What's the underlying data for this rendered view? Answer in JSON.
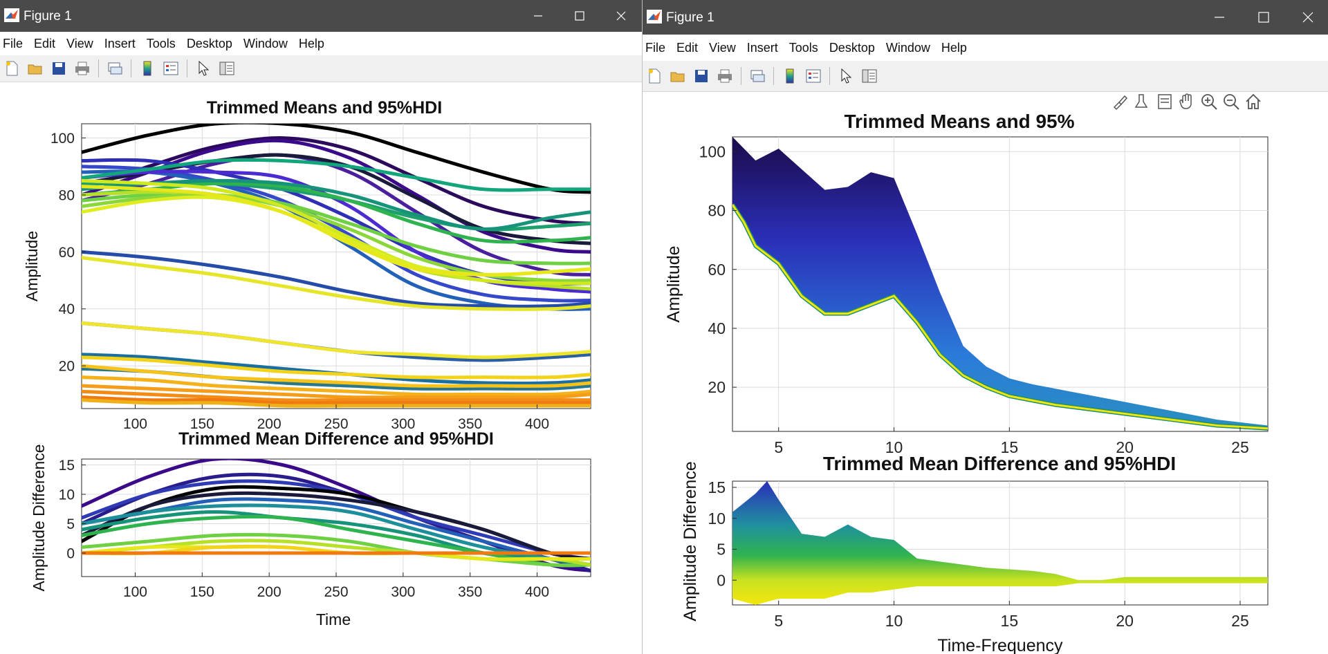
{
  "windows": [
    {
      "title": "Figure 1",
      "menus": [
        "File",
        "Edit",
        "View",
        "Insert",
        "Tools",
        "Desktop",
        "Window",
        "Help"
      ],
      "plots": {
        "top": {
          "title": "Trimmed Means and 95%HDI",
          "ylabel": "Amplitude",
          "xlabel": "",
          "xticks": [
            "100",
            "150",
            "200",
            "250",
            "300",
            "350",
            "400"
          ],
          "yticks": [
            "20",
            "40",
            "60",
            "80",
            "100"
          ]
        },
        "bottom": {
          "title": "Trimmed Mean Difference and 95%HDI",
          "ylabel": "Amplitude Difference",
          "xlabel": "Time",
          "xticks": [
            "100",
            "150",
            "200",
            "250",
            "300",
            "350",
            "400"
          ],
          "yticks": [
            "0",
            "5",
            "10",
            "15"
          ]
        }
      }
    },
    {
      "title": "Figure 1",
      "menus": [
        "File",
        "Edit",
        "View",
        "Insert",
        "Tools",
        "Desktop",
        "Window",
        "Help"
      ],
      "plots": {
        "top": {
          "title": "Trimmed Means and 95%",
          "ylabel": "Amplitude",
          "xlabel": "",
          "xticks": [
            "5",
            "10",
            "15",
            "20",
            "25"
          ],
          "yticks": [
            "20",
            "40",
            "60",
            "80",
            "100"
          ]
        },
        "bottom": {
          "title": "Trimmed Mean Difference and 95%HDI",
          "ylabel": "Amplitude Difference",
          "xlabel": "Time-Frequency",
          "xticks": [
            "5",
            "10",
            "15",
            "20",
            "25"
          ],
          "yticks": [
            "0",
            "5",
            "10",
            "15"
          ]
        }
      }
    }
  ],
  "chart_data": [
    {
      "type": "line",
      "title": "Trimmed Means and 95%HDI",
      "xlabel": "",
      "ylabel": "Amplitude",
      "xlim": [
        60,
        440
      ],
      "ylim": [
        5,
        105
      ],
      "x": [
        60,
        110,
        160,
        210,
        260,
        310,
        360,
        410,
        440
      ],
      "series": [
        {
          "color": "#000000",
          "values": [
            95,
            101,
            105,
            105,
            102,
            95,
            88,
            82,
            81
          ]
        },
        {
          "color": "#2b0a5e",
          "values": [
            82,
            90,
            97,
            100,
            96,
            86,
            76,
            71,
            70
          ]
        },
        {
          "color": "#3a0a8a",
          "values": [
            80,
            88,
            96,
            99,
            93,
            80,
            67,
            61,
            60
          ]
        },
        {
          "color": "#4a1f9e",
          "values": [
            78,
            84,
            91,
            94,
            88,
            74,
            60,
            53,
            52
          ]
        },
        {
          "color": "#1a1a3a",
          "values": [
            84,
            88,
            92,
            94,
            90,
            79,
            68,
            64,
            63
          ]
        },
        {
          "color": "#2e2fb5",
          "values": [
            92,
            92,
            88,
            82,
            72,
            60,
            52,
            49,
            49
          ]
        },
        {
          "color": "#3548c9",
          "values": [
            90,
            89,
            85,
            78,
            66,
            52,
            45,
            43,
            43
          ]
        },
        {
          "color": "#2360b8",
          "values": [
            88,
            88,
            84,
            76,
            62,
            48,
            42,
            40,
            40
          ]
        },
        {
          "color": "#4c2bd0",
          "values": [
            86,
            88,
            88,
            86,
            76,
            60,
            50,
            47,
            46
          ]
        },
        {
          "color": "#13a67c",
          "values": [
            86,
            89,
            92,
            92,
            90,
            86,
            82,
            82,
            82
          ]
        },
        {
          "color": "#1d9f6e",
          "values": [
            84,
            84,
            84,
            82,
            78,
            72,
            68,
            69,
            70
          ]
        },
        {
          "color": "#2fb34f",
          "values": [
            80,
            82,
            84,
            83,
            78,
            70,
            64,
            64,
            65
          ]
        },
        {
          "color": "#17937a",
          "values": [
            82,
            84,
            85,
            84,
            80,
            73,
            68,
            72,
            74
          ]
        },
        {
          "color": "#70d044",
          "values": [
            78,
            80,
            80,
            77,
            70,
            62,
            57,
            56,
            56
          ]
        },
        {
          "color": "#8bd63a",
          "values": [
            76,
            79,
            80,
            76,
            68,
            58,
            52,
            50,
            50
          ]
        },
        {
          "color": "#b8e028",
          "values": [
            80,
            81,
            80,
            74,
            64,
            54,
            50,
            48,
            47
          ]
        },
        {
          "color": "#cfe820",
          "values": [
            85,
            84,
            82,
            76,
            65,
            55,
            50,
            49,
            49
          ]
        },
        {
          "color": "#dded20",
          "values": [
            74,
            78,
            79,
            74,
            64,
            55,
            52,
            53,
            54
          ]
        },
        {
          "color": "#e7e81c",
          "values": [
            83,
            82,
            80,
            74,
            63,
            54,
            52,
            53,
            54
          ]
        },
        {
          "color": "#244ca8",
          "values": [
            60,
            58,
            55,
            51,
            46,
            42,
            41,
            41,
            42
          ]
        },
        {
          "color": "#e5e52a",
          "values": [
            58,
            55,
            52,
            48,
            44,
            41,
            40,
            40,
            41
          ]
        },
        {
          "color": "#2a5fa5",
          "values": [
            35,
            33,
            31,
            28,
            25,
            23,
            22,
            23,
            24
          ]
        },
        {
          "color": "#f0e52e",
          "values": [
            35,
            33,
            31,
            28,
            25,
            24,
            23,
            24,
            25
          ]
        },
        {
          "color": "#1a6ea0",
          "values": [
            24,
            23,
            21,
            19,
            17,
            15,
            14,
            14,
            15
          ]
        },
        {
          "color": "#f3d21a",
          "values": [
            23,
            22,
            20,
            18,
            17,
            16,
            16,
            16,
            17
          ]
        },
        {
          "color": "#27788f",
          "values": [
            19,
            18,
            16,
            14,
            13,
            12,
            12,
            12,
            13
          ]
        },
        {
          "color": "#f7c21a",
          "values": [
            20,
            18,
            16,
            15,
            14,
            13,
            13,
            13,
            14
          ]
        },
        {
          "color": "#f5b119",
          "values": [
            16,
            15,
            13,
            12,
            11,
            10,
            10,
            10,
            11
          ]
        },
        {
          "color": "#f59c18",
          "values": [
            13,
            12,
            11,
            10,
            9,
            9,
            9,
            9,
            10
          ]
        },
        {
          "color": "#f28c15",
          "values": [
            11,
            10,
            9,
            8,
            8,
            8,
            8,
            8,
            8
          ]
        },
        {
          "color": "#f07a12",
          "values": [
            9,
            8,
            8,
            7,
            7,
            7,
            7,
            7,
            7
          ]
        },
        {
          "color": "#eeb218",
          "values": [
            8,
            7,
            7,
            6,
            6,
            6,
            6,
            6,
            6
          ]
        }
      ]
    },
    {
      "type": "line",
      "title": "Trimmed Mean Difference and 95%HDI",
      "xlabel": "Time",
      "ylabel": "Amplitude Difference",
      "xlim": [
        60,
        440
      ],
      "ylim": [
        -4,
        16
      ],
      "x": [
        60,
        110,
        160,
        210,
        260,
        310,
        360,
        410,
        440
      ],
      "series": [
        {
          "color": "#3a0a8a",
          "values": [
            8,
            13,
            16,
            15,
            11,
            6,
            2,
            -2,
            -3
          ]
        },
        {
          "color": "#2a1c8c",
          "values": [
            5,
            10,
            13,
            13,
            10,
            6,
            2,
            -1,
            -3
          ]
        },
        {
          "color": "#2f3bb5",
          "values": [
            6,
            10,
            12,
            12,
            10,
            6,
            3,
            0,
            -1
          ]
        },
        {
          "color": "#000000",
          "values": [
            2,
            8,
            11,
            11,
            10,
            7,
            4,
            0,
            -1
          ]
        },
        {
          "color": "#1a1a3a",
          "values": [
            3,
            8,
            10,
            10,
            9,
            7,
            4,
            0,
            -1
          ]
        },
        {
          "color": "#2360b8",
          "values": [
            5,
            7,
            9,
            9,
            8,
            5,
            2,
            -1,
            -2
          ]
        },
        {
          "color": "#1d8f9a",
          "values": [
            5,
            7,
            8,
            8,
            7,
            4,
            1,
            -1,
            -2
          ]
        },
        {
          "color": "#17937a",
          "values": [
            4,
            6,
            7,
            6,
            5,
            3,
            0,
            -1,
            -2
          ]
        },
        {
          "color": "#2fb34f",
          "values": [
            3,
            5,
            6,
            6,
            4,
            2,
            0,
            -2,
            -2
          ]
        },
        {
          "color": "#70d044",
          "values": [
            1,
            2,
            3,
            3,
            2,
            0,
            -1,
            -2,
            -2
          ]
        },
        {
          "color": "#b8e028",
          "values": [
            0,
            1,
            2,
            2,
            1,
            0,
            -1,
            -1,
            -2
          ]
        },
        {
          "color": "#e7e81c",
          "values": [
            0,
            1,
            1,
            1,
            0,
            0,
            -1,
            -1,
            -1
          ]
        },
        {
          "color": "#f3d21a",
          "values": [
            0,
            0,
            1,
            1,
            0,
            0,
            0,
            0,
            0
          ]
        },
        {
          "color": "#f59c18",
          "values": [
            0,
            0,
            0,
            0,
            0,
            0,
            0,
            0,
            0
          ]
        },
        {
          "color": "#f07a12",
          "values": [
            0,
            0,
            0,
            0,
            0,
            0,
            0,
            0,
            0
          ]
        }
      ]
    },
    {
      "type": "area",
      "title": "Trimmed Means and 95%",
      "xlabel": "",
      "ylabel": "Amplitude",
      "xlim": [
        3,
        26.2
      ],
      "ylim": [
        5,
        105
      ],
      "x": [
        3,
        3.5,
        4,
        5,
        6,
        7,
        8,
        9,
        10,
        11,
        12,
        13,
        14,
        15,
        16,
        17,
        18,
        19,
        20,
        22,
        24,
        26.2
      ],
      "upper": [
        105,
        101,
        97,
        101,
        94,
        87,
        88,
        93,
        91,
        72,
        52,
        34,
        27,
        23,
        21,
        19.5,
        18,
        16.5,
        15,
        12,
        9,
        7
      ],
      "lower": [
        82,
        76,
        68,
        62,
        51,
        45,
        45,
        48,
        51,
        42,
        31,
        24,
        20,
        17,
        15.5,
        14,
        13,
        12,
        11,
        9,
        7,
        6
      ]
    },
    {
      "type": "area",
      "title": "Trimmed Mean Difference and 95%HDI",
      "xlabel": "Time-Frequency",
      "ylabel": "Amplitude Difference",
      "xlim": [
        3,
        26.2
      ],
      "ylim": [
        -4,
        16
      ],
      "x": [
        3,
        3.5,
        4,
        4.5,
        5,
        6,
        7,
        8,
        9,
        10,
        11,
        12,
        14,
        16,
        17,
        18,
        19,
        20,
        22,
        24,
        26.2
      ],
      "upper": [
        11,
        12.5,
        14,
        16,
        13,
        7.5,
        7,
        9,
        7,
        6.5,
        3.5,
        3,
        2,
        1.5,
        1,
        0,
        0,
        0.5,
        0.5,
        0.5,
        0.5
      ],
      "lower": [
        -3,
        -3.5,
        -4,
        -3.5,
        -3,
        -3,
        -3,
        -2,
        -2,
        -1.5,
        -1,
        -1,
        -1,
        -1,
        -1,
        -0.5,
        -0.5,
        -0.5,
        -0.5,
        -0.5,
        -0.5
      ]
    }
  ]
}
